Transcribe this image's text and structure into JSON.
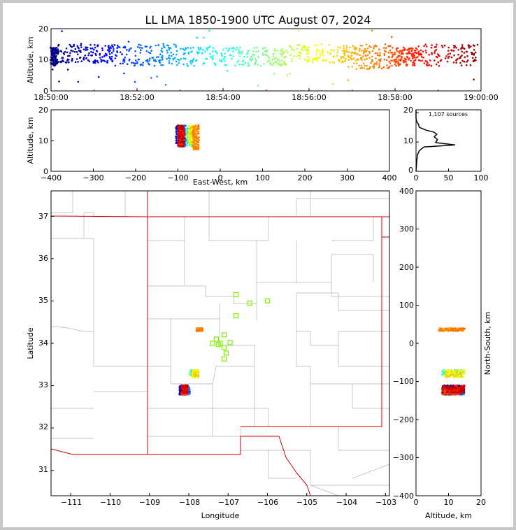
{
  "chart_data": {
    "type": "scatter",
    "title": "LL LMA 1850-1900 UTC August 07, 2024",
    "colormap": "jet, by time from 18:50:00 to 19:00:00",
    "panels": {
      "time_altitude": {
        "xlabel": "",
        "ylabel": "Altitude, km",
        "xlim_minutes": [
          0,
          10
        ],
        "ylim": [
          0,
          20
        ],
        "xtick_labels": [
          "18:50:00",
          "18:52:00",
          "18:54:00",
          "18:56:00",
          "18:58:00",
          "19:00:00"
        ],
        "ytick_labels": [
          "0",
          "10",
          "20"
        ]
      },
      "east_altitude": {
        "xlabel": "East-West, km",
        "ylabel": "Altitude, km",
        "xlim": [
          -400,
          400
        ],
        "ylim": [
          0,
          20
        ],
        "xtick_labels": [
          "−400",
          "−300",
          "−200",
          "−100",
          "0",
          "100",
          "200",
          "300",
          "400"
        ],
        "ytick_labels": [
          "0",
          "10",
          "20"
        ]
      },
      "altitude_histogram": {
        "annotation": "1,107 sources",
        "xlim": [
          0,
          100
        ],
        "ylim": [
          0,
          21
        ],
        "xtick_labels": [
          "0",
          "50",
          "100"
        ],
        "ytick_labels": [
          "0",
          "10",
          "20"
        ],
        "profile": [
          [
            0,
            0
          ],
          [
            1,
            3
          ],
          [
            2,
            5.5
          ],
          [
            5,
            7
          ],
          [
            12,
            8.3
          ],
          [
            60,
            9
          ],
          [
            30,
            9.8
          ],
          [
            33,
            10.8
          ],
          [
            28,
            11.8
          ],
          [
            32,
            12.6
          ],
          [
            27,
            13.4
          ],
          [
            16,
            14
          ],
          [
            5,
            15
          ],
          [
            4,
            16
          ],
          [
            1,
            17
          ],
          [
            0,
            18
          ],
          [
            0,
            21
          ]
        ]
      },
      "plan_view": {
        "xlabel": "Longitude",
        "ylabel": "Latitude",
        "xlim": [
          -111.5,
          -102.9
        ],
        "ylim": [
          30.4,
          37.6
        ],
        "xtick_labels": [
          "−111",
          "−110",
          "−109",
          "−108",
          "−107",
          "−106",
          "−105",
          "−104",
          "−103"
        ],
        "ytick_labels": [
          "31",
          "32",
          "33",
          "34",
          "35",
          "36",
          "37"
        ],
        "stations_lonlat": [
          [
            -106.8,
            35.15
          ],
          [
            -106.45,
            34.95
          ],
          [
            -106.0,
            35.0
          ],
          [
            -106.8,
            34.65
          ],
          [
            -107.1,
            34.2
          ],
          [
            -107.3,
            34.1
          ],
          [
            -107.4,
            34.0
          ],
          [
            -107.2,
            34.0
          ],
          [
            -106.95,
            34.02
          ],
          [
            -107.1,
            33.9
          ],
          [
            -107.05,
            33.77
          ],
          [
            -107.1,
            33.63
          ],
          [
            -107.25,
            33.97
          ]
        ]
      },
      "altitude_north": {
        "xlabel": "Altitude, km",
        "ylabel": "North-South, km",
        "xlim": [
          0,
          20
        ],
        "ylim": [
          -400,
          400
        ],
        "xtick_labels": [
          "0",
          "10",
          "20"
        ],
        "ytick_labels": [
          "−400",
          "−300",
          "−200",
          "−100",
          "0",
          "100",
          "200",
          "300",
          "400"
        ]
      }
    },
    "clusters": [
      {
        "t": [
          0.0,
          0.15
        ],
        "alt": [
          8,
          14
        ],
        "ew": [
          -100,
          -85
        ],
        "ns": [
          -130,
          -110
        ],
        "n": 120
      },
      {
        "t": [
          0.15,
          1.5
        ],
        "alt": [
          9,
          15
        ],
        "ew": [
          -105,
          -85
        ],
        "ns": [
          -135,
          -110
        ],
        "n": 150
      },
      {
        "t": [
          1.5,
          3.2
        ],
        "alt": [
          8,
          15
        ],
        "ew": [
          -100,
          -80
        ],
        "ns": [
          -135,
          -115
        ],
        "n": 150
      },
      {
        "t": [
          3.2,
          5.5
        ],
        "alt": [
          8,
          14
        ],
        "ew": [
          -80,
          -60
        ],
        "ns": [
          -85,
          -70
        ],
        "n": 180
      },
      {
        "t": [
          5.5,
          7.0
        ],
        "alt": [
          9,
          15
        ],
        "ew": [
          -75,
          -60
        ],
        "ns": [
          -90,
          -70
        ],
        "n": 130
      },
      {
        "t": [
          7.0,
          7.9
        ],
        "alt": [
          7,
          15
        ],
        "ew": [
          -65,
          -50
        ],
        "ns": [
          32,
          40
        ],
        "n": 120
      },
      {
        "t": [
          7.9,
          8.5
        ],
        "alt": [
          8,
          14
        ],
        "ew": [
          -100,
          -85
        ],
        "ns": [
          -135,
          -115
        ],
        "n": 120
      },
      {
        "t": [
          8.5,
          9.9
        ],
        "alt": [
          8,
          15
        ],
        "ew": [
          -100,
          -85
        ],
        "ns": [
          -130,
          -110
        ],
        "n": 130
      }
    ]
  }
}
